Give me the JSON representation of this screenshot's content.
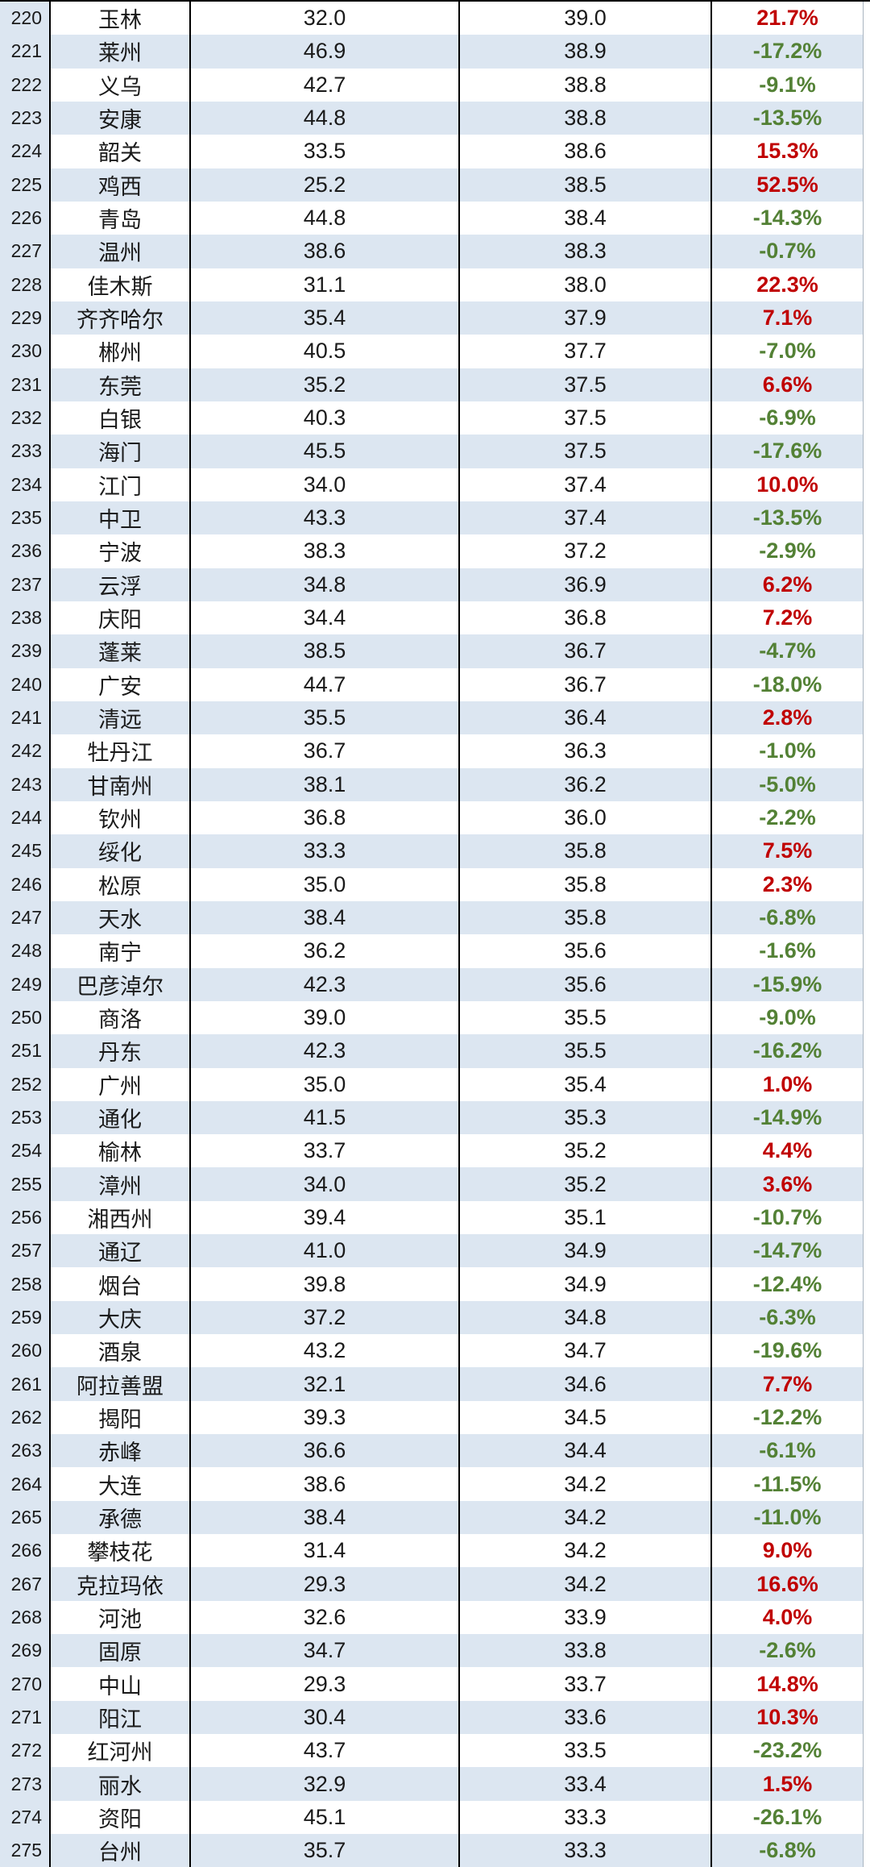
{
  "colors": {
    "row_stripe": "#dce6f1",
    "positive_pct": "#c00000",
    "negative_pct": "#538135",
    "grid_line": "#000000",
    "right_edge_line": "#a9b4c0",
    "text": "#1a1a1a",
    "background": "#ffffff"
  },
  "table": {
    "columns": [
      "rank",
      "city",
      "value1",
      "value2",
      "change_pct"
    ],
    "rows": [
      [
        220,
        "玉林",
        "32.0",
        "39.0",
        "21.7%"
      ],
      [
        221,
        "莱州",
        "46.9",
        "38.9",
        "-17.2%"
      ],
      [
        222,
        "义乌",
        "42.7",
        "38.8",
        "-9.1%"
      ],
      [
        223,
        "安康",
        "44.8",
        "38.8",
        "-13.5%"
      ],
      [
        224,
        "韶关",
        "33.5",
        "38.6",
        "15.3%"
      ],
      [
        225,
        "鸡西",
        "25.2",
        "38.5",
        "52.5%"
      ],
      [
        226,
        "青岛",
        "44.8",
        "38.4",
        "-14.3%"
      ],
      [
        227,
        "温州",
        "38.6",
        "38.3",
        "-0.7%"
      ],
      [
        228,
        "佳木斯",
        "31.1",
        "38.0",
        "22.3%"
      ],
      [
        229,
        "齐齐哈尔",
        "35.4",
        "37.9",
        "7.1%"
      ],
      [
        230,
        "郴州",
        "40.5",
        "37.7",
        "-7.0%"
      ],
      [
        231,
        "东莞",
        "35.2",
        "37.5",
        "6.6%"
      ],
      [
        232,
        "白银",
        "40.3",
        "37.5",
        "-6.9%"
      ],
      [
        233,
        "海门",
        "45.5",
        "37.5",
        "-17.6%"
      ],
      [
        234,
        "江门",
        "34.0",
        "37.4",
        "10.0%"
      ],
      [
        235,
        "中卫",
        "43.3",
        "37.4",
        "-13.5%"
      ],
      [
        236,
        "宁波",
        "38.3",
        "37.2",
        "-2.9%"
      ],
      [
        237,
        "云浮",
        "34.8",
        "36.9",
        "6.2%"
      ],
      [
        238,
        "庆阳",
        "34.4",
        "36.8",
        "7.2%"
      ],
      [
        239,
        "蓬莱",
        "38.5",
        "36.7",
        "-4.7%"
      ],
      [
        240,
        "广安",
        "44.7",
        "36.7",
        "-18.0%"
      ],
      [
        241,
        "清远",
        "35.5",
        "36.4",
        "2.8%"
      ],
      [
        242,
        "牡丹江",
        "36.7",
        "36.3",
        "-1.0%"
      ],
      [
        243,
        "甘南州",
        "38.1",
        "36.2",
        "-5.0%"
      ],
      [
        244,
        "钦州",
        "36.8",
        "36.0",
        "-2.2%"
      ],
      [
        245,
        "绥化",
        "33.3",
        "35.8",
        "7.5%"
      ],
      [
        246,
        "松原",
        "35.0",
        "35.8",
        "2.3%"
      ],
      [
        247,
        "天水",
        "38.4",
        "35.8",
        "-6.8%"
      ],
      [
        248,
        "南宁",
        "36.2",
        "35.6",
        "-1.6%"
      ],
      [
        249,
        "巴彦淖尔",
        "42.3",
        "35.6",
        "-15.9%"
      ],
      [
        250,
        "商洛",
        "39.0",
        "35.5",
        "-9.0%"
      ],
      [
        251,
        "丹东",
        "42.3",
        "35.5",
        "-16.2%"
      ],
      [
        252,
        "广州",
        "35.0",
        "35.4",
        "1.0%"
      ],
      [
        253,
        "通化",
        "41.5",
        "35.3",
        "-14.9%"
      ],
      [
        254,
        "榆林",
        "33.7",
        "35.2",
        "4.4%"
      ],
      [
        255,
        "漳州",
        "34.0",
        "35.2",
        "3.6%"
      ],
      [
        256,
        "湘西州",
        "39.4",
        "35.1",
        "-10.7%"
      ],
      [
        257,
        "通辽",
        "41.0",
        "34.9",
        "-14.7%"
      ],
      [
        258,
        "烟台",
        "39.8",
        "34.9",
        "-12.4%"
      ],
      [
        259,
        "大庆",
        "37.2",
        "34.8",
        "-6.3%"
      ],
      [
        260,
        "酒泉",
        "43.2",
        "34.7",
        "-19.6%"
      ],
      [
        261,
        "阿拉善盟",
        "32.1",
        "34.6",
        "7.7%"
      ],
      [
        262,
        "揭阳",
        "39.3",
        "34.5",
        "-12.2%"
      ],
      [
        263,
        "赤峰",
        "36.6",
        "34.4",
        "-6.1%"
      ],
      [
        264,
        "大连",
        "38.6",
        "34.2",
        "-11.5%"
      ],
      [
        265,
        "承德",
        "38.4",
        "34.2",
        "-11.0%"
      ],
      [
        266,
        "攀枝花",
        "31.4",
        "34.2",
        "9.0%"
      ],
      [
        267,
        "克拉玛依",
        "29.3",
        "34.2",
        "16.6%"
      ],
      [
        268,
        "河池",
        "32.6",
        "33.9",
        "4.0%"
      ],
      [
        269,
        "固原",
        "34.7",
        "33.8",
        "-2.6%"
      ],
      [
        270,
        "中山",
        "29.3",
        "33.7",
        "14.8%"
      ],
      [
        271,
        "阳江",
        "30.4",
        "33.6",
        "10.3%"
      ],
      [
        272,
        "红河州",
        "43.7",
        "33.5",
        "-23.2%"
      ],
      [
        273,
        "丽水",
        "32.9",
        "33.4",
        "1.5%"
      ],
      [
        274,
        "资阳",
        "45.1",
        "33.3",
        "-26.1%"
      ],
      [
        275,
        "台州",
        "35.7",
        "33.3",
        "-6.8%"
      ]
    ]
  }
}
